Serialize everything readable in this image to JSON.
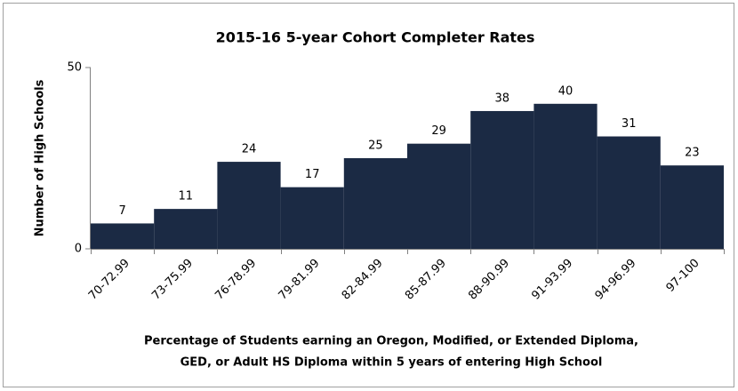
{
  "chart_data": {
    "type": "bar",
    "title": "2015-16 5-year Cohort Completer Rates",
    "ylabel": "Number of High Schools",
    "xlabel": [
      "Percentage of Students earning an Oregon, Modified, or Extended Diploma,",
      "GED, or Adult HS Diploma within 5 years of entering High School"
    ],
    "categories": [
      "70-72.99",
      "73-75.99",
      "76-78.99",
      "79-81.99",
      "82-84.99",
      "85-87.99",
      "88-90.99",
      "91-93.99",
      "94-96.99",
      "97-100"
    ],
    "values": [
      7,
      11,
      24,
      17,
      25,
      29,
      38,
      40,
      31,
      23
    ],
    "color": "#1b2a44",
    "ylim": [
      0,
      50
    ],
    "yticks": [
      0,
      50
    ],
    "grid": false
  }
}
